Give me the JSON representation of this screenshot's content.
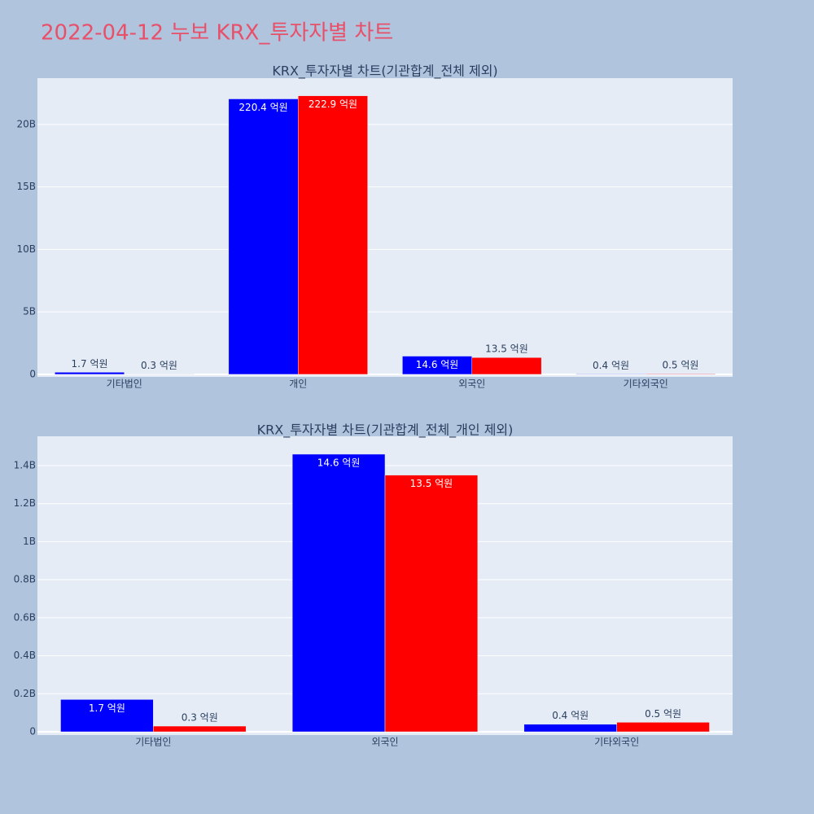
{
  "title": "2022-04-12 누보 KRX_투자자별 차트",
  "chart_data": [
    {
      "type": "bar",
      "title": "KRX_투자자별 차트(기관합계_전체 제외)",
      "categories": [
        "기타법인",
        "개인",
        "외국인",
        "기타외국인"
      ],
      "series": [
        {
          "color": "#0000ff",
          "values": [
            170000000,
            22040000000,
            1460000000,
            40000000
          ],
          "value_labels": [
            "1.7 억원",
            "220.4 억원",
            "14.6 억원",
            "0.4 억원"
          ]
        },
        {
          "color": "#ff0000",
          "values": [
            30000000,
            22290000000,
            1350000000,
            50000000
          ],
          "value_labels": [
            "0.3 억원",
            "222.9 억원",
            "13.5 억원",
            "0.5 억원"
          ]
        }
      ],
      "ylim": [
        -200000000,
        23700000000
      ],
      "yticks": [
        0,
        {
          "value": 5000000000,
          "label": "5B"
        },
        {
          "value": 10000000000,
          "label": "10B"
        },
        {
          "value": 15000000000,
          "label": "15B"
        },
        {
          "value": 20000000000,
          "label": "20B"
        }
      ],
      "grid": true
    },
    {
      "type": "bar",
      "title": "KRX_투자자별 차트(기관합계_전체_개인 제외)",
      "categories": [
        "기타법인",
        "외국인",
        "기타외국인"
      ],
      "series": [
        {
          "color": "#0000ff",
          "values": [
            170000000,
            1460000000,
            40000000
          ],
          "value_labels": [
            "1.7 억원",
            "14.6 억원",
            "0.4 억원"
          ]
        },
        {
          "color": "#ff0000",
          "values": [
            30000000,
            1350000000,
            50000000
          ],
          "value_labels": [
            "0.3 억원",
            "13.5 억원",
            "0.5 억원"
          ]
        }
      ],
      "ylim": [
        -17000000,
        1554000000
      ],
      "yticks": [
        0,
        {
          "value": 200000000,
          "label": "0.2B"
        },
        {
          "value": 400000000,
          "label": "0.4B"
        },
        {
          "value": 600000000,
          "label": "0.6B"
        },
        {
          "value": 800000000,
          "label": "0.8B"
        },
        {
          "value": 1000000000,
          "label": "1B"
        },
        {
          "value": 1200000000,
          "label": "1.2B"
        },
        {
          "value": 1400000000,
          "label": "1.4B"
        }
      ],
      "grid": true
    }
  ]
}
